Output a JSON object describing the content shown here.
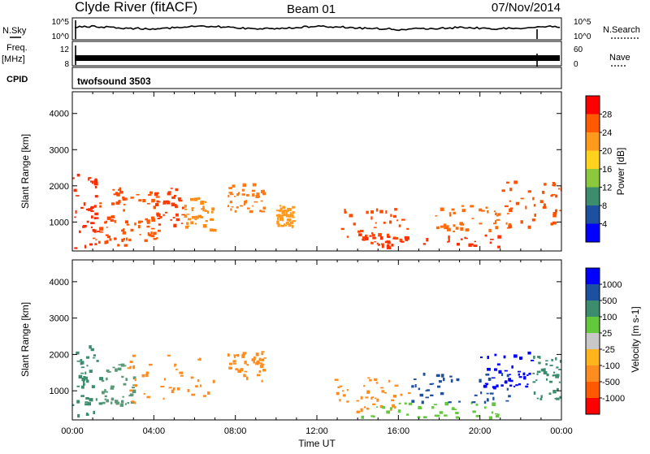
{
  "header": {
    "station": "Clyde River (fitACF)",
    "beam": "Beam 01",
    "date": "07/Nov/2014"
  },
  "top_panels": {
    "nsky_label": "N.Sky",
    "nsky_left_ticks": [
      "10^5",
      "10^0"
    ],
    "nsearch_label": "N.Search",
    "nsearch_right_ticks": [
      "10^5",
      "10^0"
    ],
    "freq_label": "Freq.",
    "freq_unit": "[MHz]",
    "freq_left_ticks": [
      "12",
      "8"
    ],
    "nave_label": "Nave",
    "nave_right_ticks": [
      "60",
      "0"
    ],
    "cpid_label": "CPID",
    "cpid_value": "twofsound 3503"
  },
  "chart_data": [
    {
      "type": "heatmap",
      "title": "",
      "xlabel": "",
      "ylabel": "Slant Range [km]",
      "x_tick_labels": [
        "00:00",
        "04:00",
        "08:00",
        "12:00",
        "16:00",
        "20:00",
        "00:00"
      ],
      "y_ticks": [
        1000,
        2000,
        3000,
        4000
      ],
      "ylim": [
        200,
        4600
      ],
      "grid": false,
      "colorbar": {
        "label": "Power [dB]",
        "ticks": [
          "28",
          "24",
          "20",
          "16",
          "12",
          "8",
          "4"
        ],
        "colors": [
          "#ff0000",
          "#ff5a00",
          "#ff9a1e",
          "#ffd21e",
          "#8cc83c",
          "#3c8c6e",
          "#1e50a0",
          "#0000ff"
        ]
      },
      "blobs": [
        {
          "t0": 0.0,
          "t1": 1.2,
          "r0": 300,
          "r1": 2400,
          "c": "#ff2a00"
        },
        {
          "t0": 1.0,
          "t1": 2.6,
          "r0": 350,
          "r1": 2000,
          "c": "#ff4a00"
        },
        {
          "t0": 2.4,
          "t1": 4.2,
          "r0": 500,
          "r1": 1900,
          "c": "#ff5a00"
        },
        {
          "t0": 4.0,
          "t1": 5.4,
          "r0": 900,
          "r1": 2000,
          "c": "#ff3a00"
        },
        {
          "t0": 5.4,
          "t1": 7.0,
          "r0": 800,
          "r1": 1700,
          "c": "#ff8a14"
        },
        {
          "t0": 7.6,
          "t1": 9.4,
          "r0": 1300,
          "r1": 2100,
          "c": "#ff7a14"
        },
        {
          "t0": 10.0,
          "t1": 10.8,
          "r0": 900,
          "r1": 1500,
          "c": "#ff9a1e"
        },
        {
          "t0": 12.8,
          "t1": 16.5,
          "r0": 400,
          "r1": 1400,
          "c": "#ff4a00"
        },
        {
          "t0": 14.0,
          "t1": 21.0,
          "r0": 300,
          "r1": 700,
          "c": "#ff3000"
        },
        {
          "t0": 17.5,
          "t1": 21.5,
          "r0": 700,
          "r1": 1500,
          "c": "#ff6a0a"
        },
        {
          "t0": 21.0,
          "t1": 24.0,
          "r0": 800,
          "r1": 2200,
          "c": "#ff5000"
        }
      ]
    },
    {
      "type": "heatmap",
      "title": "",
      "xlabel": "Time UT",
      "ylabel": "Slant Range [km]",
      "x_tick_labels": [
        "00:00",
        "04:00",
        "08:00",
        "12:00",
        "16:00",
        "20:00",
        "00:00"
      ],
      "y_ticks": [
        1000,
        2000,
        3000,
        4000
      ],
      "ylim": [
        200,
        4600
      ],
      "grid": false,
      "colorbar": {
        "label": "Velocity [m s-1]",
        "ticks": [
          "1000",
          "500",
          "100",
          "25",
          "-25",
          "-100",
          "-500",
          "-1000"
        ],
        "colors": [
          "#0000ff",
          "#1e50a0",
          "#3c8c6e",
          "#64c83c",
          "#c8c8c8",
          "#ffb41e",
          "#ff8c1e",
          "#ff5a00",
          "#ff0000"
        ]
      },
      "blobs": [
        {
          "t0": 0.0,
          "t1": 1.4,
          "r0": 300,
          "r1": 2300,
          "c": "#3c8c6e"
        },
        {
          "t0": 1.4,
          "t1": 3.0,
          "r0": 600,
          "r1": 1800,
          "c": "#5a9a78"
        },
        {
          "t0": 2.6,
          "t1": 7.0,
          "r0": 700,
          "r1": 2000,
          "c": "#ff8c1e"
        },
        {
          "t0": 7.6,
          "t1": 9.4,
          "r0": 1300,
          "r1": 2100,
          "c": "#ff8c1e"
        },
        {
          "t0": 12.8,
          "t1": 16.5,
          "r0": 400,
          "r1": 1400,
          "c": "#ff8c1e"
        },
        {
          "t0": 14.0,
          "t1": 21.0,
          "r0": 300,
          "r1": 700,
          "c": "#64c83c"
        },
        {
          "t0": 16.5,
          "t1": 21.5,
          "r0": 700,
          "r1": 1500,
          "c": "#1e50a0"
        },
        {
          "t0": 20.0,
          "t1": 22.5,
          "r0": 1100,
          "r1": 2100,
          "c": "#0000ff"
        },
        {
          "t0": 22.5,
          "t1": 24.0,
          "r0": 800,
          "r1": 2000,
          "c": "#3c8c6e"
        }
      ]
    }
  ]
}
